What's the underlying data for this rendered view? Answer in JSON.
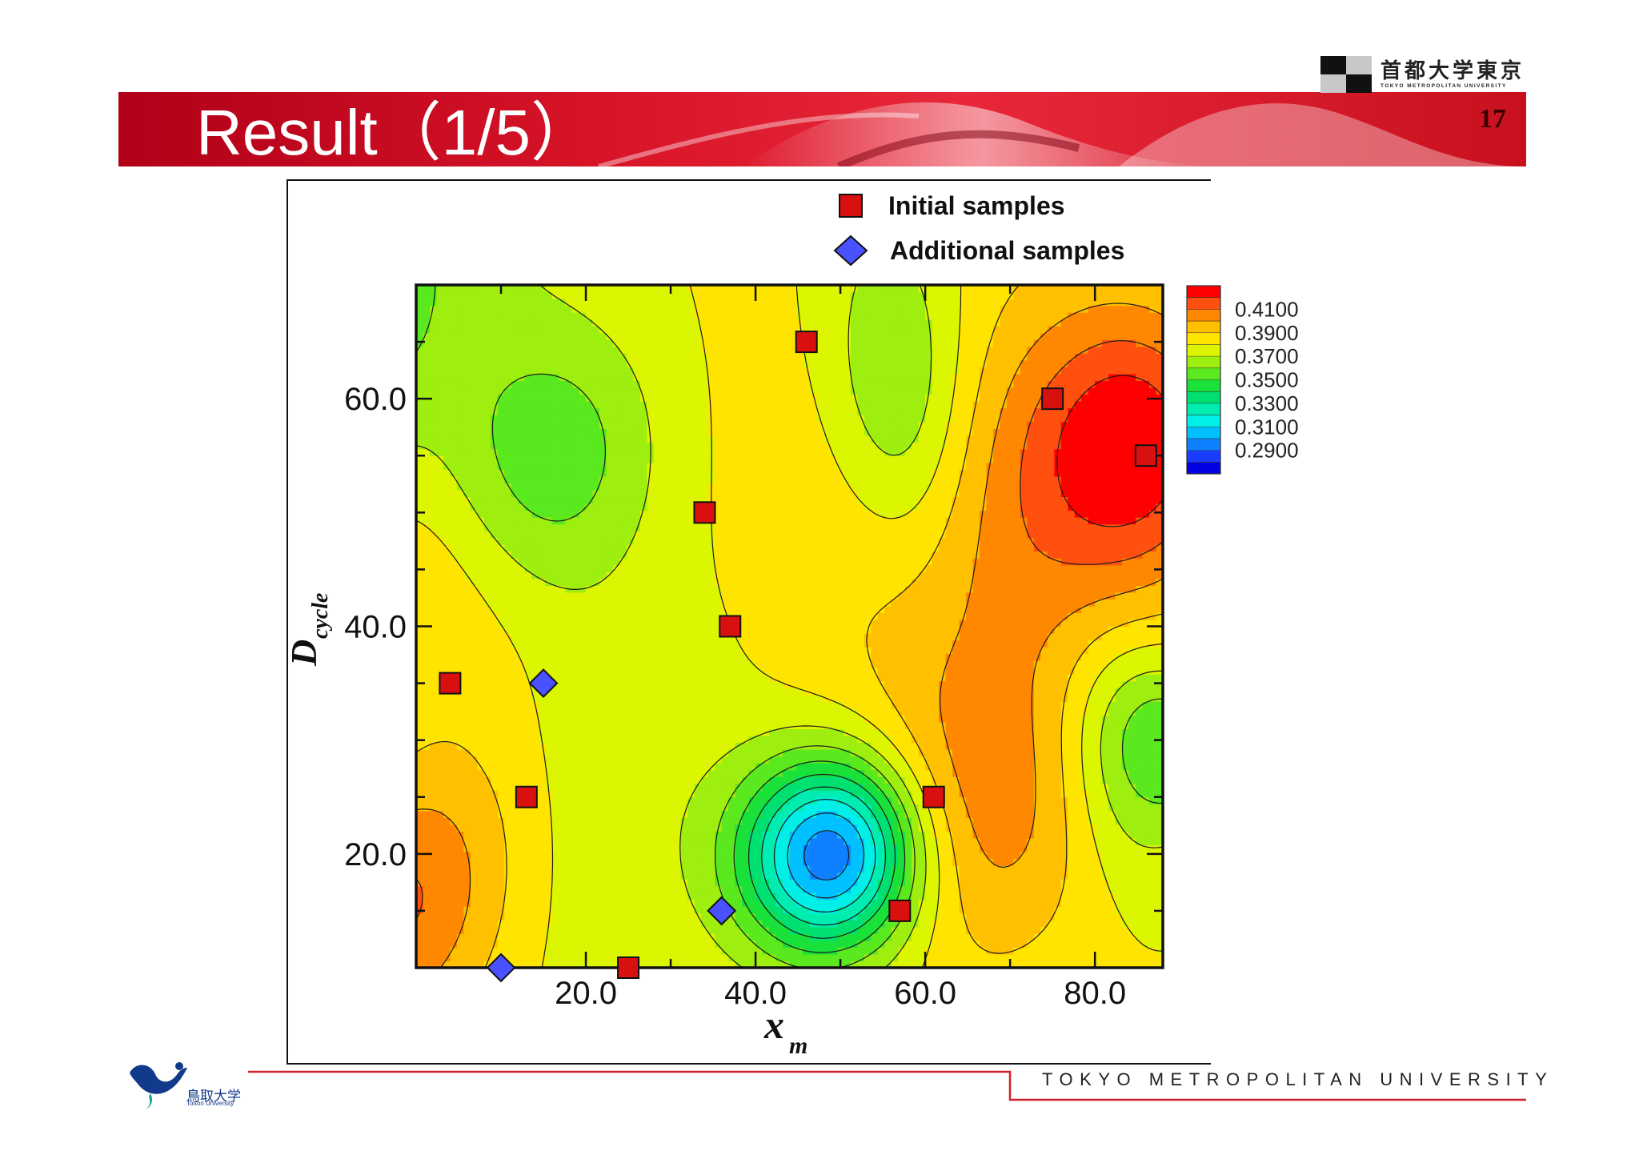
{
  "slide": {
    "title": "Result（1/5）",
    "page_number": "17",
    "footer_university": "TOKYO METROPOLITAN UNIVERSITY",
    "logo_right_jp": "首都大学東京",
    "logo_right_en": "TOKYO METROPOLITAN UNIVERSITY",
    "logo_left_jp": "鳥取大学",
    "logo_left_en": "Tottori University",
    "colors": {
      "banner_red": "#c8101e",
      "footer_line": "#d0202a",
      "logo_blue": "#123a8a"
    }
  },
  "chart_data": {
    "type": "contour",
    "title": "",
    "xlabel": "x",
    "xlabel_subscript": "m",
    "ylabel": "D",
    "ylabel_subscript": "cycle",
    "xlim": [
      0,
      88
    ],
    "ylim": [
      10,
      70
    ],
    "xticks": [
      20.0,
      40.0,
      60.0,
      80.0
    ],
    "xtick_labels": [
      "20.0",
      "40.0",
      "60.0",
      "80.0"
    ],
    "yticks": [
      20.0,
      40.0,
      60.0
    ],
    "ytick_labels": [
      "20.0",
      "40.0",
      "60.0"
    ],
    "colorbar": {
      "labels": [
        "0.4100",
        "0.3900",
        "0.3700",
        "0.3500",
        "0.3300",
        "0.3100",
        "0.2900"
      ],
      "levels": [
        0.28,
        0.29,
        0.3,
        0.31,
        0.32,
        0.33,
        0.34,
        0.35,
        0.36,
        0.37,
        0.38,
        0.39,
        0.4,
        0.41,
        0.42
      ],
      "colors": [
        "#0000e0",
        "#1a3cff",
        "#0f80ff",
        "#00c0ff",
        "#00f0e8",
        "#00ecb0",
        "#00e070",
        "#1ae03a",
        "#5ae81e",
        "#9eee10",
        "#dcf500",
        "#ffe400",
        "#ffc000",
        "#ff8800",
        "#ff5010",
        "#ff0000"
      ]
    },
    "legend": {
      "placement": "top-center",
      "entries": [
        {
          "label": "Initial samples",
          "marker": "square",
          "color": "#d81010"
        },
        {
          "label": "Additional samples",
          "marker": "diamond",
          "color": "#4a52ff"
        }
      ]
    },
    "series": [
      {
        "name": "Initial samples",
        "marker": "square",
        "points": [
          [
            4,
            35
          ],
          [
            13,
            25
          ],
          [
            25,
            10
          ],
          [
            34,
            50
          ],
          [
            37,
            40
          ],
          [
            46,
            65
          ],
          [
            57,
            15
          ],
          [
            61,
            25
          ],
          [
            75,
            60
          ],
          [
            86,
            55
          ]
        ]
      },
      {
        "name": "Additional samples",
        "marker": "diamond",
        "points": [
          [
            10,
            10
          ],
          [
            15,
            35
          ],
          [
            36,
            15
          ]
        ]
      }
    ]
  }
}
